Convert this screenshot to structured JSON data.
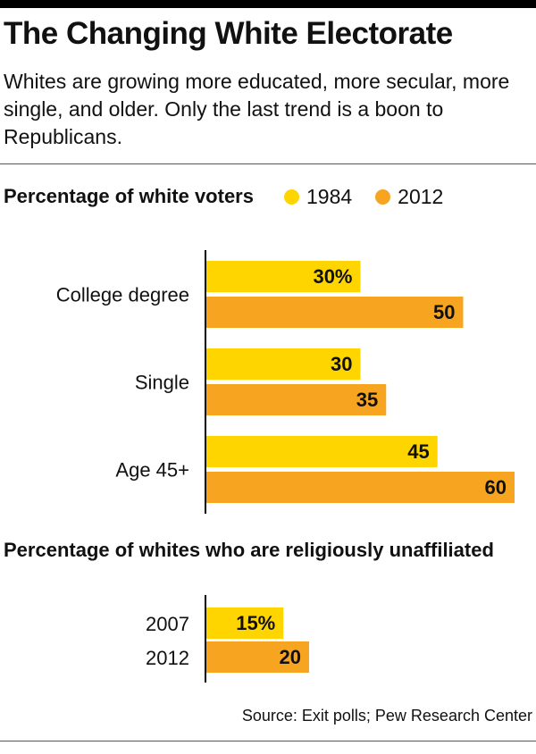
{
  "header": {
    "title": "The Changing White Electorate",
    "subtitle": "Whites are growing more educated, more secular, more single, and older. Only the last trend is a boon to Republicans."
  },
  "colors": {
    "series_1984": "#FFD500",
    "series_2012": "#F7A520",
    "axis": "#000000"
  },
  "chart_data": [
    {
      "type": "bar",
      "orientation": "horizontal",
      "title": "Percentage of white voters",
      "categories": [
        "College degree",
        "Single",
        "Age 45+"
      ],
      "series": [
        {
          "name": "1984",
          "values": [
            30,
            30,
            45
          ],
          "labels": [
            "30%",
            "30",
            "45"
          ]
        },
        {
          "name": "2012",
          "values": [
            50,
            35,
            60
          ],
          "labels": [
            "50",
            "35",
            "60"
          ]
        }
      ],
      "xlim": [
        0,
        60
      ],
      "legend": "top-right",
      "grid": false
    },
    {
      "type": "bar",
      "orientation": "horizontal",
      "title": "Percentage of whites who are religiously unaffiliated",
      "categories": [
        "2007",
        "2012"
      ],
      "values": [
        15,
        20
      ],
      "labels": [
        "15%",
        "20"
      ],
      "xlim": [
        0,
        60
      ],
      "grid": false
    }
  ],
  "footer": {
    "source": "Source: Exit polls; Pew Research Center"
  }
}
